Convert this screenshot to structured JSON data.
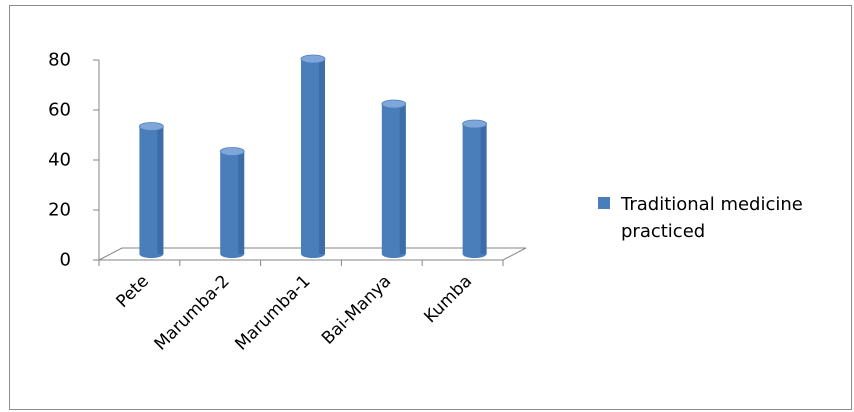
{
  "chart_data": {
    "type": "bar",
    "categories": [
      "Pete",
      "Marumba-2",
      "Marumba-1",
      "Bai-Manya",
      "Kumba"
    ],
    "series": [
      {
        "name": "Traditional medicine practiced",
        "values": [
          51,
          41,
          78,
          60,
          52
        ]
      }
    ],
    "ylim": [
      0,
      80
    ],
    "yticks": [
      0,
      20,
      40,
      60,
      80
    ],
    "style": "3d-cylinder",
    "grid": false,
    "legend_position": "right"
  },
  "colors": {
    "bar_side": "#4a7ebb",
    "bar_shadow": "#2f5f99",
    "bar_top": "#7fa6d8",
    "axis": "#868686",
    "legend_swatch": "#4a7ebb"
  }
}
